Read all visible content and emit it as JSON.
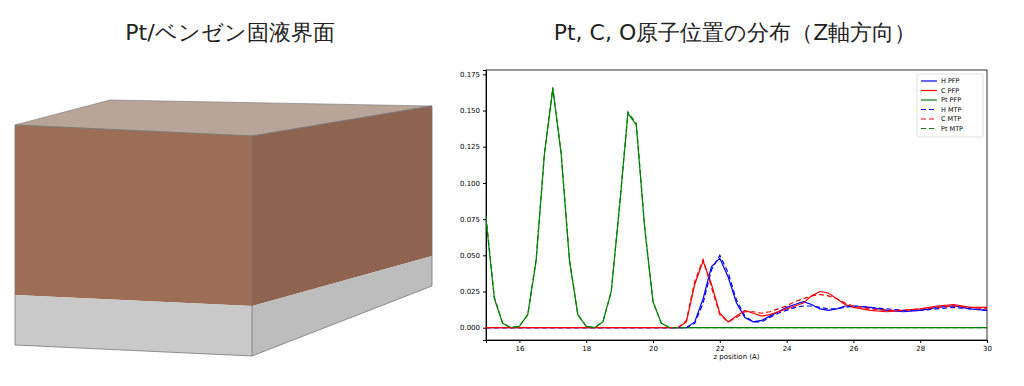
{
  "image_panel": {
    "title": "Pt/ベンゼン固液界面"
  },
  "chart_data": {
    "type": "line",
    "title": "Pt, C, O原子位置の分布（Z軸方向）",
    "x_label": "z position (A)",
    "x": [
      15,
      15.25,
      15.5,
      15.75,
      16,
      16.25,
      16.5,
      16.75,
      17,
      17.25,
      17.5,
      17.75,
      18,
      18.25,
      18.5,
      18.75,
      19,
      19.25,
      19.5,
      19.75,
      20,
      20.25,
      20.5,
      20.75,
      21,
      21.25,
      21.5,
      21.75,
      22,
      22.25,
      22.5,
      22.75,
      23,
      23.25,
      23.5,
      23.75,
      24,
      24.25,
      24.5,
      24.75,
      25,
      25.25,
      25.5,
      25.75,
      26,
      26.5,
      27,
      27.5,
      28,
      28.5,
      29,
      29.5,
      30
    ],
    "series": [
      {
        "name": "H PFP",
        "color": "#0000ff",
        "line_style": "solid",
        "values": [
          0,
          0,
          0,
          0,
          0,
          0,
          0,
          0,
          0,
          0,
          0,
          0,
          0,
          0,
          0,
          0,
          0,
          0,
          0,
          0,
          0,
          0,
          0,
          0,
          0,
          0.004,
          0.02,
          0.042,
          0.048,
          0.035,
          0.017,
          0.007,
          0.004,
          0.005,
          0.008,
          0.011,
          0.014,
          0.016,
          0.018,
          0.016,
          0.013,
          0.012,
          0.013,
          0.015,
          0.015,
          0.014,
          0.012,
          0.011,
          0.012,
          0.014,
          0.015,
          0.013,
          0.012
        ]
      },
      {
        "name": "C PFP",
        "color": "#ff0000",
        "line_style": "solid",
        "values": [
          0,
          0,
          0,
          0,
          0,
          0,
          0,
          0,
          0,
          0,
          0,
          0,
          0,
          0,
          0,
          0,
          0,
          0,
          0,
          0,
          0,
          0,
          0,
          0,
          0.004,
          0.03,
          0.046,
          0.03,
          0.01,
          0.004,
          0.008,
          0.012,
          0.01,
          0.008,
          0.009,
          0.011,
          0.013,
          0.015,
          0.017,
          0.022,
          0.025,
          0.024,
          0.02,
          0.016,
          0.014,
          0.012,
          0.011,
          0.012,
          0.013,
          0.015,
          0.016,
          0.014,
          0.014
        ]
      },
      {
        "name": "Pt PFP",
        "color": "#008000",
        "line_style": "solid",
        "values": [
          0.075,
          0.02,
          0.003,
          0,
          0.001,
          0.009,
          0.046,
          0.12,
          0.165,
          0.12,
          0.046,
          0.009,
          0.001,
          0,
          0.004,
          0.025,
          0.084,
          0.148,
          0.14,
          0.069,
          0.018,
          0.003,
          0,
          0,
          0,
          0,
          0,
          0,
          0,
          0,
          0,
          0,
          0,
          0,
          0,
          0,
          0,
          0,
          0,
          0,
          0,
          0,
          0,
          0,
          0,
          0,
          0,
          0,
          0,
          0,
          0,
          0,
          0
        ]
      },
      {
        "name": "H MTP",
        "color": "#0000ff",
        "line_style": "dashed",
        "values": [
          0,
          0,
          0,
          0,
          0,
          0,
          0,
          0,
          0,
          0,
          0,
          0,
          0,
          0,
          0,
          0,
          0,
          0,
          0,
          0,
          0,
          0,
          0,
          0,
          0,
          0.003,
          0.017,
          0.04,
          0.05,
          0.038,
          0.019,
          0.008,
          0.004,
          0.004,
          0.007,
          0.01,
          0.012,
          0.014,
          0.015,
          0.015,
          0.014,
          0.013,
          0.013,
          0.014,
          0.015,
          0.014,
          0.013,
          0.012,
          0.012,
          0.013,
          0.014,
          0.013,
          0.012
        ]
      },
      {
        "name": "C MTP",
        "color": "#ff0000",
        "line_style": "dashed",
        "values": [
          0,
          0,
          0,
          0,
          0,
          0,
          0,
          0,
          0,
          0,
          0,
          0,
          0,
          0,
          0,
          0,
          0,
          0,
          0,
          0,
          0,
          0,
          0,
          0,
          0.005,
          0.032,
          0.047,
          0.028,
          0.009,
          0.004,
          0.007,
          0.011,
          0.011,
          0.01,
          0.011,
          0.013,
          0.015,
          0.018,
          0.02,
          0.022,
          0.023,
          0.022,
          0.02,
          0.017,
          0.015,
          0.013,
          0.012,
          0.012,
          0.013,
          0.014,
          0.015,
          0.014,
          0.013
        ]
      },
      {
        "name": "Pt MTP",
        "color": "#008000",
        "line_style": "dashed",
        "values": [
          0.077,
          0.021,
          0.003,
          0,
          0.001,
          0.009,
          0.047,
          0.121,
          0.166,
          0.121,
          0.047,
          0.009,
          0.001,
          0,
          0.004,
          0.025,
          0.085,
          0.149,
          0.141,
          0.07,
          0.018,
          0.003,
          0,
          0,
          0,
          0,
          0,
          0,
          0,
          0,
          0,
          0,
          0,
          0,
          0,
          0,
          0,
          0,
          0,
          0,
          0,
          0,
          0,
          0,
          0,
          0,
          0,
          0,
          0,
          0,
          0,
          0,
          0
        ]
      }
    ],
    "xlim": [
      15,
      30
    ],
    "xticks": [
      16,
      18,
      20,
      22,
      24,
      26,
      28,
      30
    ],
    "ylim": [
      -0.0085,
      0.178
    ],
    "yticks": [
      {
        "value": 0,
        "label": "0.000"
      },
      {
        "value": 0.025,
        "label": "0.025"
      },
      {
        "value": 0.05,
        "label": "0.050"
      },
      {
        "value": 0.075,
        "label": "0.075"
      },
      {
        "value": 0.1,
        "label": "0.100"
      },
      {
        "value": 0.125,
        "label": "0.125"
      },
      {
        "value": 0.15,
        "label": "0.150"
      },
      {
        "value": 0.175,
        "label": "0.175"
      }
    ],
    "legend": "upper right",
    "grid": false
  }
}
